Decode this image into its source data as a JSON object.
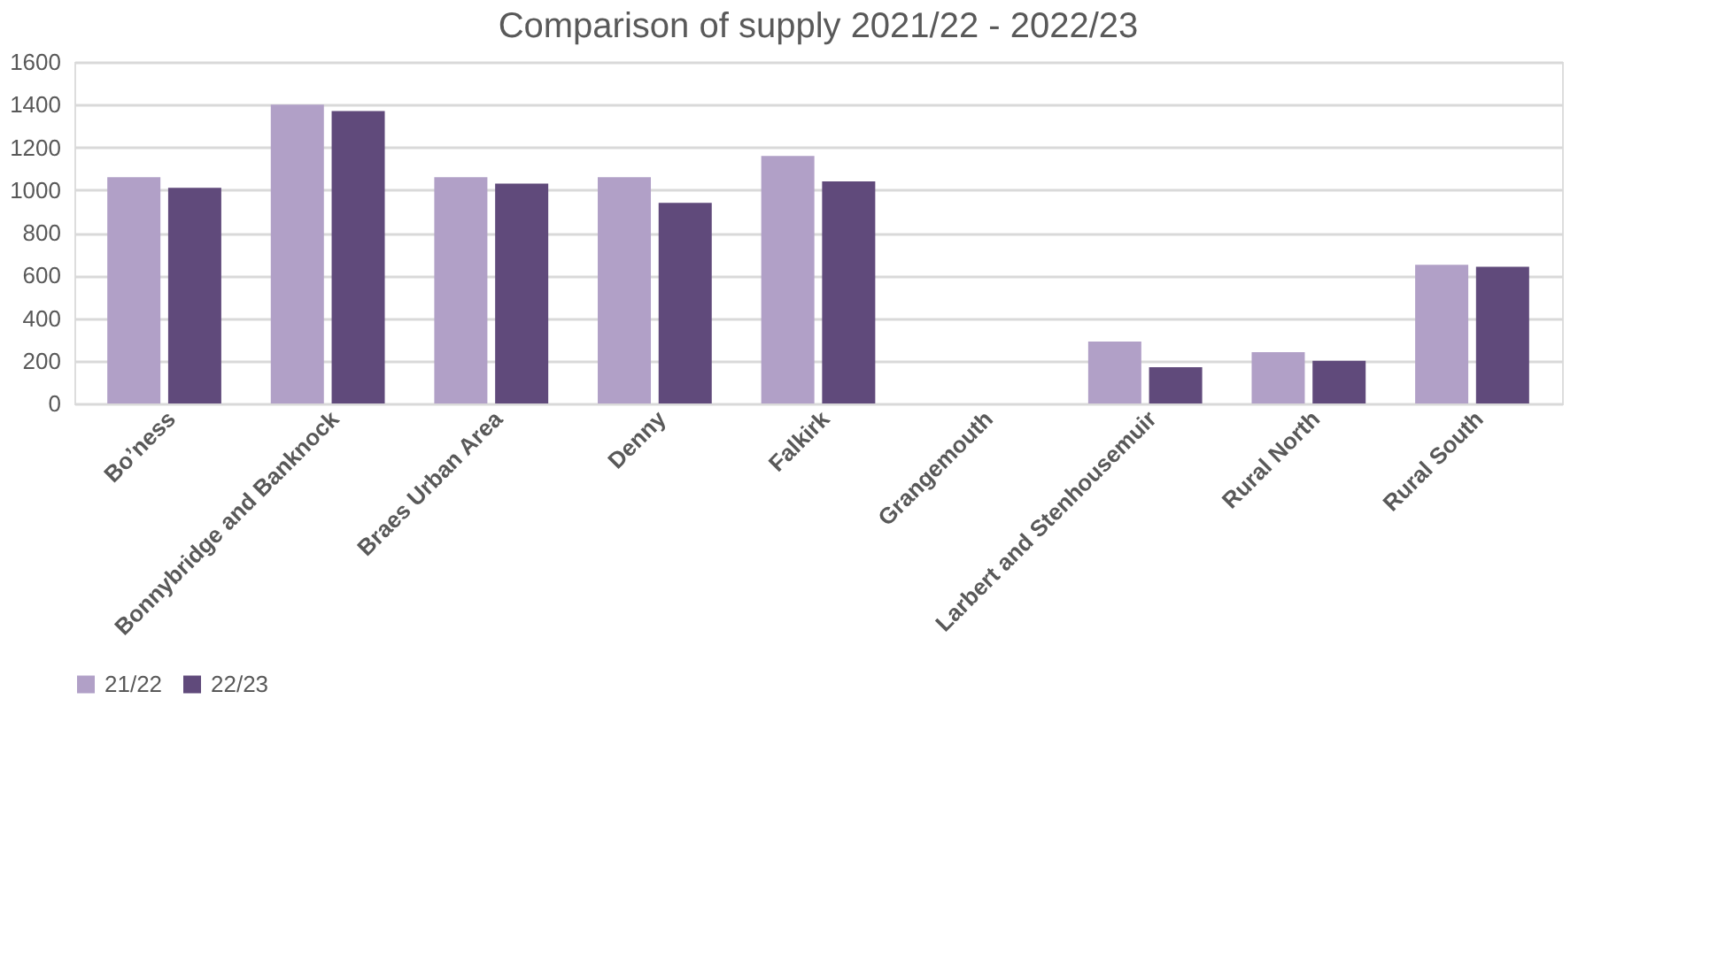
{
  "chart_data": {
    "type": "bar",
    "title": "Comparison of supply 2021/22 - 2022/23",
    "categories": [
      "Bo’ness",
      "Bonnybridge and Banknock",
      "Braes Urban Area",
      "Denny",
      "Falkirk",
      "Grangemouth",
      "Larbert and Stenhousemuir",
      "Rural North",
      "Rural South"
    ],
    "series": [
      {
        "name": "21/22",
        "color": "#b1a0c7",
        "values": [
          1060,
          1400,
          1060,
          1060,
          1160,
          null,
          290,
          240,
          650
        ]
      },
      {
        "name": "22/23",
        "color": "#604a7b",
        "values": [
          1010,
          1370,
          1030,
          940,
          1040,
          null,
          170,
          200,
          640
        ]
      }
    ],
    "ylim": [
      0,
      1600
    ],
    "yticks": [
      0,
      200,
      400,
      600,
      800,
      1000,
      1200,
      1400,
      1600
    ],
    "grid": "y",
    "legend": "bottom"
  }
}
